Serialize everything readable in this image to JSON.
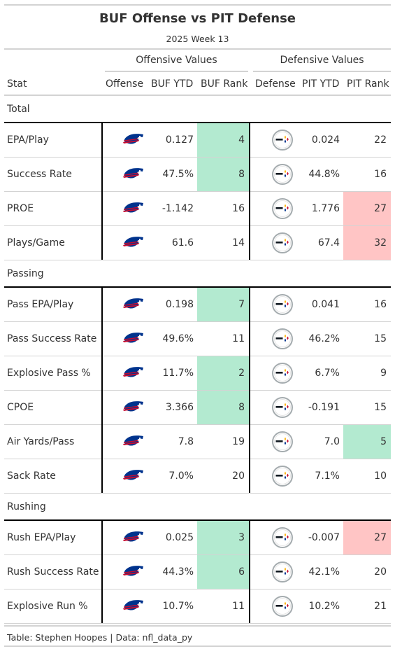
{
  "title": "BUF Offense vs PIT Defense",
  "subtitle": "2025 Week 13",
  "spanners": {
    "offense": "Offensive Values",
    "defense": "Defensive Values"
  },
  "columns": {
    "stat": "Stat",
    "offense": "Offense",
    "buf_ytd": "BUF YTD",
    "buf_rank": "BUF Rank",
    "defense": "Defense",
    "pit_ytd": "PIT YTD",
    "pit_rank": "PIT Rank"
  },
  "colors": {
    "good": "#b3ead0",
    "bad": "#ffc5c5",
    "bills_blue": "#00338d",
    "bills_red": "#c60c30"
  },
  "icons": {
    "offense": "bills-logo-icon",
    "defense": "steelers-logo-icon"
  },
  "footer": "Table: Stephen Hoopes | Data: nfl_data_py",
  "chart_data": {
    "type": "table",
    "groups": [
      {
        "name": "Total",
        "rows": [
          {
            "stat": "EPA/Play",
            "buf_ytd": "0.127",
            "buf_rank": "4",
            "pit_ytd": "0.024",
            "pit_rank": "22",
            "buf_hl": "good",
            "pit_hl": ""
          },
          {
            "stat": "Success Rate",
            "buf_ytd": "47.5%",
            "buf_rank": "8",
            "pit_ytd": "44.8%",
            "pit_rank": "16",
            "buf_hl": "good",
            "pit_hl": ""
          },
          {
            "stat": "PROE",
            "buf_ytd": "-1.142",
            "buf_rank": "16",
            "pit_ytd": "1.776",
            "pit_rank": "27",
            "buf_hl": "",
            "pit_hl": "bad"
          },
          {
            "stat": "Plays/Game",
            "buf_ytd": "61.6",
            "buf_rank": "14",
            "pit_ytd": "67.4",
            "pit_rank": "32",
            "buf_hl": "",
            "pit_hl": "bad"
          }
        ]
      },
      {
        "name": "Passing",
        "rows": [
          {
            "stat": "Pass EPA/Play",
            "buf_ytd": "0.198",
            "buf_rank": "7",
            "pit_ytd": "0.041",
            "pit_rank": "16",
            "buf_hl": "good",
            "pit_hl": ""
          },
          {
            "stat": "Pass Success Rate",
            "buf_ytd": "49.6%",
            "buf_rank": "11",
            "pit_ytd": "46.2%",
            "pit_rank": "15",
            "buf_hl": "",
            "pit_hl": ""
          },
          {
            "stat": "Explosive Pass %",
            "buf_ytd": "11.7%",
            "buf_rank": "2",
            "pit_ytd": "6.7%",
            "pit_rank": "9",
            "buf_hl": "good",
            "pit_hl": ""
          },
          {
            "stat": "CPOE",
            "buf_ytd": "3.366",
            "buf_rank": "8",
            "pit_ytd": "-0.191",
            "pit_rank": "15",
            "buf_hl": "good",
            "pit_hl": ""
          },
          {
            "stat": "Air Yards/Pass",
            "buf_ytd": "7.8",
            "buf_rank": "19",
            "pit_ytd": "7.0",
            "pit_rank": "5",
            "buf_hl": "",
            "pit_hl": "good"
          },
          {
            "stat": "Sack Rate",
            "buf_ytd": "7.0%",
            "buf_rank": "20",
            "pit_ytd": "7.1%",
            "pit_rank": "10",
            "buf_hl": "",
            "pit_hl": ""
          }
        ]
      },
      {
        "name": "Rushing",
        "rows": [
          {
            "stat": "Rush EPA/Play",
            "buf_ytd": "0.025",
            "buf_rank": "3",
            "pit_ytd": "-0.007",
            "pit_rank": "27",
            "buf_hl": "good",
            "pit_hl": "bad"
          },
          {
            "stat": "Rush Success Rate",
            "buf_ytd": "44.3%",
            "buf_rank": "6",
            "pit_ytd": "42.1%",
            "pit_rank": "20",
            "buf_hl": "good",
            "pit_hl": ""
          },
          {
            "stat": "Explosive Run %",
            "buf_ytd": "10.7%",
            "buf_rank": "11",
            "pit_ytd": "10.2%",
            "pit_rank": "21",
            "buf_hl": "",
            "pit_hl": ""
          }
        ]
      }
    ]
  }
}
